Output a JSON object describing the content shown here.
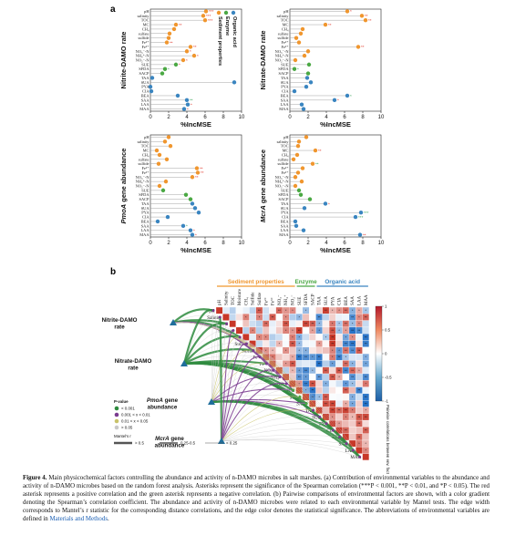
{
  "panel_a": {
    "letter": "a",
    "xlabel": "%IncMSE",
    "legend": [
      {
        "label": "Organic acid",
        "color": "#3a85c0"
      },
      {
        "label": "Enzyme",
        "color": "#4aa843"
      },
      {
        "label": "Sediment properties",
        "color": "#f0962e"
      }
    ],
    "variables": [
      "pH",
      "salinity",
      "TOC",
      "MC",
      "CH₄",
      "sulfate",
      "sulfide",
      "Fe²⁺",
      "Fe³⁺",
      "NO₃⁻-N",
      "NH₄⁺-N",
      "NO₂⁻-N",
      "SUE",
      "SFDA",
      "SACP",
      "TAA",
      "SUA",
      "PYA",
      "CIA",
      "BEA",
      "SAA",
      "LAA",
      "MAA"
    ],
    "categories": [
      "sed",
      "sed",
      "sed",
      "sed",
      "sed",
      "sed",
      "sed",
      "sed",
      "sed",
      "sed",
      "sed",
      "sed",
      "enz",
      "enz",
      "enz",
      "org",
      "org",
      "org",
      "org",
      "org",
      "org",
      "org",
      "org"
    ],
    "category_colors": {
      "sed": "#f0962e",
      "enz": "#4aa843",
      "org": "#3a85c0"
    },
    "sig_colors": {
      "pos": "#e0362a",
      "neg": "#3aa35a"
    }
  },
  "panel_b": {
    "letter": "b",
    "groups": [
      "Sediment properties",
      "Enzyme",
      "Organic acid"
    ],
    "group_colors": [
      "#f0962e",
      "#4aa843",
      "#3a85c0"
    ],
    "matrix_labels": [
      "pH",
      "Salinity",
      "TOC",
      "Moisture",
      "CH₄",
      "Sulfide",
      "Sulfate",
      "Fe²⁺",
      "Fe³⁺",
      "NO₃⁻",
      "NH₄⁺",
      "NO₂⁻",
      "SUE",
      "SFDA",
      "SACP",
      "TAA",
      "SUA",
      "PYA",
      "CIA",
      "BEA",
      "SAA",
      "LAA",
      "MAA"
    ],
    "colorbar_ticks": [
      "1",
      "0.5",
      "0",
      "-0.5",
      "-1"
    ],
    "colorbar_title": "Pairwise correlations between env. factors",
    "legend_pvalue_title": "P-value",
    "legend_pvalue": [
      "< 0.001",
      "0.001 < x < 0.01",
      "0.01 < x < 0.05",
      "> 0.05"
    ],
    "legend_pvalue_colors": [
      "#2e8b3e",
      "#7a3b8f",
      "#c9c36a",
      "#c8c8c8"
    ],
    "legend_mantel_title": "Mantel's r",
    "legend_mantel": [
      "> 0.5",
      "0.25-0.5",
      "< 0.25"
    ]
  },
  "chart_data": [
    {
      "type": "bar",
      "title": "Nitrite-DAMO rate",
      "xlabel": "%IncMSE",
      "xlim": [
        0,
        10
      ],
      "categories": [
        "pH",
        "salinity",
        "TOC",
        "MC",
        "CH₄",
        "sulfate",
        "sulfide",
        "Fe²⁺",
        "Fe³⁺",
        "NO₃⁻-N",
        "NH₄⁺-N",
        "NO₂⁻-N",
        "SUE",
        "SFDA",
        "SACP",
        "TAA",
        "SUA",
        "PYA",
        "CIA",
        "BEA",
        "SAA",
        "LAA",
        "MAA"
      ],
      "values": [
        6.1,
        5.8,
        6.0,
        2.8,
        2.6,
        2.1,
        2.0,
        1.8,
        4.4,
        4.0,
        4.8,
        3.6,
        2.8,
        1.6,
        1.3,
        0.2,
        9.2,
        0.0,
        0.1,
        3.0,
        4.0,
        4.1,
        3.7
      ],
      "significance": [
        "***",
        "***",
        "***",
        "**",
        "",
        "",
        "",
        "**",
        "**",
        "*",
        "*",
        "*",
        "*",
        "*",
        "",
        "",
        "",
        "",
        "",
        "",
        "**",
        "*",
        "*"
      ],
      "sig_sign": [
        "pos",
        "pos",
        "pos",
        "pos",
        "",
        "",
        "",
        "pos",
        "pos",
        "pos",
        "pos",
        "pos",
        "pos",
        "neg",
        "",
        "",
        "",
        "",
        "",
        "",
        "neg",
        "pos",
        "pos"
      ]
    },
    {
      "type": "bar",
      "title": "Nitrate-DAMO rate",
      "xlabel": "%IncMSE",
      "xlim": [
        0,
        10
      ],
      "categories": [
        "pH",
        "salinity",
        "TOC",
        "MC",
        "CH₄",
        "sulfate",
        "sulfide",
        "Fe²⁺",
        "Fe³⁺",
        "NO₃⁻-N",
        "NH₄⁺-N",
        "NO₂⁻-N",
        "SUE",
        "SFDA",
        "SACP",
        "TAA",
        "SUA",
        "PYA",
        "CIA",
        "BEA",
        "SAA",
        "LAA",
        "MAA"
      ],
      "values": [
        6.3,
        7.9,
        8.3,
        3.9,
        1.4,
        1.2,
        0.7,
        1.0,
        7.5,
        2.0,
        1.6,
        0.6,
        2.1,
        0.5,
        2.0,
        1.9,
        2.3,
        1.8,
        0.5,
        6.3,
        4.9,
        1.3,
        1.5
      ],
      "significance": [
        "*",
        "**",
        "**",
        "**",
        "",
        "",
        "",
        "",
        "**",
        "",
        "",
        "",
        "",
        "*",
        "",
        "",
        "",
        "",
        "",
        "*",
        "*",
        "",
        ""
      ],
      "sig_sign": [
        "pos",
        "pos",
        "pos",
        "pos",
        "",
        "",
        "",
        "",
        "pos",
        "",
        "",
        "",
        "",
        "neg",
        "",
        "",
        "",
        "",
        "",
        "neg",
        "pos",
        "",
        ""
      ]
    },
    {
      "type": "bar",
      "title": "PmoA gene abundance",
      "xlabel": "%IncMSE",
      "xlim": [
        0,
        10
      ],
      "categories": [
        "pH",
        "salinity",
        "TOC",
        "MC",
        "CH₄",
        "sulfate",
        "sulfide",
        "Fe²⁺",
        "Fe³⁺",
        "NO₃⁻-N",
        "NH₄⁺-N",
        "NO₂⁻-N",
        "SUE",
        "SFDA",
        "SACP",
        "TAA",
        "SUA",
        "PYA",
        "CIA",
        "BEA",
        "SAA",
        "LAA",
        "MAA"
      ],
      "values": [
        2.0,
        1.6,
        2.2,
        0.7,
        1.0,
        1.8,
        0.9,
        5.1,
        5.2,
        4.6,
        1.7,
        1.0,
        1.4,
        3.9,
        4.4,
        4.6,
        4.9,
        5.3,
        1.9,
        0.8,
        3.6,
        4.4,
        4.6
      ],
      "significance": [
        "",
        "",
        "",
        "",
        "",
        "",
        "",
        "**",
        "**",
        "**",
        "",
        "",
        "",
        "",
        "",
        "",
        "",
        "",
        "",
        "",
        "*",
        "*",
        "*"
      ],
      "sig_sign": [
        "",
        "",
        "",
        "",
        "",
        "",
        "",
        "pos",
        "pos",
        "pos",
        "",
        "",
        "",
        "",
        "",
        "",
        "",
        "",
        "",
        "",
        "neg",
        "pos",
        "pos"
      ]
    },
    {
      "type": "bar",
      "title": "McrA gene abundance",
      "xlabel": "%IncMSE",
      "xlim": [
        0,
        10
      ],
      "categories": [
        "pH",
        "salinity",
        "TOC",
        "MC",
        "CH₄",
        "sulfate",
        "sulfide",
        "Fe²⁺",
        "Fe³⁺",
        "NO₃⁻-N",
        "NH₄⁺-N",
        "NO₂⁻-N",
        "SUE",
        "SFDA",
        "SACP",
        "TAA",
        "SUA",
        "PYA",
        "CIA",
        "BEA",
        "SAA",
        "LAA",
        "MAA"
      ],
      "values": [
        1.8,
        1.0,
        0.9,
        2.8,
        0.8,
        0.4,
        2.5,
        1.4,
        0.9,
        0.6,
        1.3,
        0.6,
        1.0,
        1.2,
        2.2,
        3.9,
        1.6,
        7.8,
        7.2,
        0.6,
        0.7,
        1.5,
        7.7
      ],
      "significance": [
        "",
        "",
        "",
        "**",
        "",
        "",
        "**",
        "",
        "",
        "",
        "",
        "",
        "",
        "",
        "",
        "*",
        "",
        "***",
        "***",
        "",
        "",
        "",
        "**"
      ],
      "sig_sign": [
        "",
        "",
        "",
        "pos",
        "",
        "",
        "neg",
        "",
        "",
        "",
        "",
        "",
        "",
        "",
        "",
        "pos",
        "",
        "neg",
        "neg",
        "",
        "",
        "",
        "pos"
      ]
    }
  ],
  "caption": {
    "figno": "Figure 4.",
    "text": " Main physicochemical factors controlling the abundance and activity of n-DAMO microbes in salt marshes. (a) Contribution of environmental variables to the abundance and activity of n-DAMO microbes based on the random forest analysis. Asterisks represent the significance of the Spearman correlation (***P < 0.001, **P < 0.01, and *P < 0.05). The red asterisk represents a positive correlation and the green asterisk represents a negative correlation. (b) Pairwise comparisons of environmental factors are shown, with a color gradient denoting the Spearman’s correlation coefficient. The abundance and activity of n-DAMO microbes were related to each environmental variable by Mantel tests. The edge width corresponds to Mantel’s r statistic for the corresponding distance correlations, and the edge color denotes the statistical significance. The abbreviations of environmental variables are defined in ",
    "link": "Materials and Methods",
    "end": "."
  }
}
